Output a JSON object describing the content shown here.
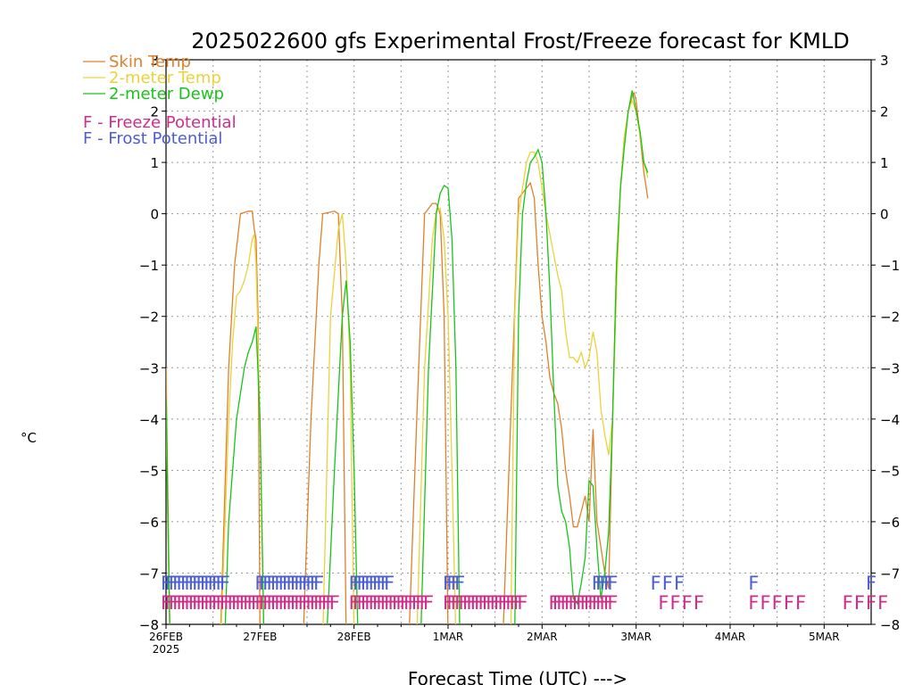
{
  "chart_data": {
    "type": "line",
    "title": "2025022600 gfs Experimental Frost/Freeze forecast for KMLD",
    "ylabel": "°C",
    "xlabel": "Forecast Time (UTC) --->",
    "ylim": [
      -8,
      3
    ],
    "xlim": [
      0,
      180
    ],
    "y_ticks": [
      "-8",
      "-7",
      "-6",
      "-5",
      "-4",
      "-3",
      "-2",
      "-1",
      "0",
      "1",
      "2",
      "3"
    ],
    "x_ticks": [
      {
        "t": 0,
        "label": "26FEB",
        "sub": "2025"
      },
      {
        "t": 24,
        "label": "27FEB",
        "sub": ""
      },
      {
        "t": 48,
        "label": "28FEB",
        "sub": ""
      },
      {
        "t": 72,
        "label": "1MAR",
        "sub": ""
      },
      {
        "t": 96,
        "label": "2MAR",
        "sub": ""
      },
      {
        "t": 120,
        "label": "3MAR",
        "sub": ""
      },
      {
        "t": 144,
        "label": "4MAR",
        "sub": ""
      },
      {
        "t": 168,
        "label": "5MAR",
        "sub": ""
      }
    ],
    "grid": true,
    "legend_position": "top-left",
    "series": [
      {
        "name": "Skin Temp",
        "color": "#e0802a",
        "points": [
          [
            0,
            -3
          ],
          [
            1,
            -8.3
          ],
          [
            8,
            -8.3
          ],
          [
            14,
            -8
          ],
          [
            16,
            -3
          ],
          [
            17.5,
            -1
          ],
          [
            19,
            0
          ],
          [
            21,
            0.05
          ],
          [
            22,
            0.05
          ],
          [
            22.5,
            -0.3
          ],
          [
            23,
            -0.5
          ],
          [
            23.5,
            -2
          ],
          [
            24,
            -8.3
          ],
          [
            35,
            -8.3
          ],
          [
            37,
            -4
          ],
          [
            39,
            -1
          ],
          [
            40,
            0
          ],
          [
            43,
            0.05
          ],
          [
            44,
            0
          ],
          [
            45,
            -2
          ],
          [
            46,
            -8.3
          ],
          [
            62,
            -8.3
          ],
          [
            64,
            -4
          ],
          [
            66,
            0
          ],
          [
            68,
            0.2
          ],
          [
            69,
            0.2
          ],
          [
            70,
            0
          ],
          [
            71,
            -2
          ],
          [
            72,
            -8.3
          ],
          [
            86,
            -8.3
          ],
          [
            88,
            -4
          ],
          [
            90,
            0.3
          ],
          [
            92,
            0.5
          ],
          [
            93,
            0.6
          ],
          [
            94,
            0.3
          ],
          [
            95,
            -1
          ],
          [
            96,
            -2
          ],
          [
            97,
            -2.5
          ],
          [
            98,
            -3.2
          ],
          [
            99,
            -3.5
          ],
          [
            100,
            -3.7
          ],
          [
            101,
            -4.2
          ],
          [
            102,
            -5
          ],
          [
            103,
            -5.5
          ],
          [
            104,
            -6.1
          ],
          [
            105,
            -6.1
          ],
          [
            106,
            -5.8
          ],
          [
            107,
            -5.5
          ],
          [
            108,
            -6
          ],
          [
            109,
            -4.2
          ],
          [
            110,
            -6
          ],
          [
            111,
            -6.5
          ],
          [
            112,
            -7
          ],
          [
            113,
            -7.3
          ],
          [
            114,
            -4
          ],
          [
            115,
            -1
          ],
          [
            116,
            0.5
          ],
          [
            117,
            1.5
          ],
          [
            118,
            2
          ],
          [
            119,
            2.3
          ],
          [
            119.5,
            2.35
          ],
          [
            120,
            2.2
          ],
          [
            121,
            1.5
          ],
          [
            122,
            0.8
          ],
          [
            123,
            0.3
          ]
        ]
      },
      {
        "name": "2-meter Temp",
        "color": "#ead23a",
        "points": [
          [
            0,
            -4
          ],
          [
            1,
            -8.3
          ],
          [
            14,
            -8.3
          ],
          [
            16,
            -4
          ],
          [
            17,
            -2.5
          ],
          [
            18,
            -1.6
          ],
          [
            19,
            -1.5
          ],
          [
            20,
            -1.3
          ],
          [
            21,
            -1
          ],
          [
            22,
            -0.5
          ],
          [
            22.5,
            -0.4
          ],
          [
            23,
            -1
          ],
          [
            24,
            -4
          ],
          [
            25,
            -8.3
          ],
          [
            40,
            -8.3
          ],
          [
            42,
            -2
          ],
          [
            44,
            -0.3
          ],
          [
            45,
            0
          ],
          [
            46,
            -1
          ],
          [
            47,
            -3
          ],
          [
            48,
            -8.3
          ],
          [
            64,
            -8.3
          ],
          [
            66,
            -3
          ],
          [
            68,
            -0.5
          ],
          [
            69,
            0.05
          ],
          [
            70,
            0.1
          ],
          [
            71,
            -0.5
          ],
          [
            72,
            -2
          ],
          [
            73,
            -5
          ],
          [
            74,
            -8.3
          ],
          [
            88,
            -8.3
          ],
          [
            89,
            -2
          ],
          [
            90,
            0
          ],
          [
            91,
            0.5
          ],
          [
            92,
            1
          ],
          [
            93,
            1.2
          ],
          [
            94,
            1.2
          ],
          [
            95,
            1
          ],
          [
            96,
            0.5
          ],
          [
            97,
            0
          ],
          [
            98,
            -0.4
          ],
          [
            99,
            -0.8
          ],
          [
            100,
            -1.2
          ],
          [
            101,
            -1.5
          ],
          [
            102,
            -2.3
          ],
          [
            103,
            -2.8
          ],
          [
            104,
            -2.8
          ],
          [
            105,
            -2.9
          ],
          [
            106,
            -2.7
          ],
          [
            107,
            -3
          ],
          [
            108,
            -2.8
          ],
          [
            109,
            -2.3
          ],
          [
            110,
            -2.7
          ],
          [
            111,
            -3.8
          ],
          [
            112,
            -4.3
          ],
          [
            113,
            -4.7
          ],
          [
            114,
            -4
          ],
          [
            115,
            -1.5
          ],
          [
            116,
            0.5
          ],
          [
            117,
            1.5
          ],
          [
            118,
            2
          ],
          [
            119,
            2.2
          ],
          [
            120,
            2
          ],
          [
            121,
            1.5
          ],
          [
            122,
            1
          ],
          [
            123,
            0.7
          ]
        ]
      },
      {
        "name": "2-meter Dewp",
        "color": "#18c418",
        "points": [
          [
            0,
            -3.6
          ],
          [
            1,
            -8.3
          ],
          [
            15,
            -8.3
          ],
          [
            16,
            -6
          ],
          [
            17,
            -5
          ],
          [
            18,
            -4
          ],
          [
            19,
            -3.5
          ],
          [
            20,
            -3
          ],
          [
            21,
            -2.7
          ],
          [
            22,
            -2.5
          ],
          [
            23,
            -2.2
          ],
          [
            24,
            -4
          ],
          [
            25,
            -8.3
          ],
          [
            41,
            -8.3
          ],
          [
            43,
            -5
          ],
          [
            45,
            -2
          ],
          [
            46,
            -1.3
          ],
          [
            47,
            -2.5
          ],
          [
            48,
            -5
          ],
          [
            49,
            -8.3
          ],
          [
            65,
            -8.3
          ],
          [
            67,
            -3
          ],
          [
            69,
            0
          ],
          [
            70,
            0.4
          ],
          [
            71,
            0.55
          ],
          [
            72,
            0.5
          ],
          [
            73,
            -0.5
          ],
          [
            74,
            -3
          ],
          [
            75,
            -8.3
          ],
          [
            89,
            -8.3
          ],
          [
            90,
            -2
          ],
          [
            91,
            0
          ],
          [
            92,
            0.6
          ],
          [
            93,
            1
          ],
          [
            94,
            1.1
          ],
          [
            95,
            1.25
          ],
          [
            96,
            1
          ],
          [
            97,
            0
          ],
          [
            98,
            -1.5
          ],
          [
            99,
            -3.5
          ],
          [
            100,
            -5.3
          ],
          [
            101,
            -5.8
          ],
          [
            102,
            -6
          ],
          [
            103,
            -6.5
          ],
          [
            104,
            -7.5
          ],
          [
            105,
            -7.6
          ],
          [
            106,
            -7.2
          ],
          [
            107,
            -6.7
          ],
          [
            108,
            -5.2
          ],
          [
            109,
            -5.3
          ],
          [
            110,
            -6.5
          ],
          [
            111,
            -7.5
          ],
          [
            112,
            -7
          ],
          [
            113,
            -6.2
          ],
          [
            114,
            -4
          ],
          [
            115,
            -1
          ],
          [
            116,
            0.5
          ],
          [
            117,
            1.3
          ],
          [
            118,
            2
          ],
          [
            119,
            2.4
          ],
          [
            120,
            2
          ],
          [
            121,
            1.6
          ],
          [
            122,
            1
          ],
          [
            123,
            0.8
          ]
        ]
      }
    ],
    "frost_potential": {
      "label": "F - Frost Potential",
      "letter": "F",
      "color": "#4c5ed2",
      "hours": [
        0,
        1,
        2,
        3,
        4,
        5,
        6,
        7,
        8,
        9,
        10,
        11,
        12,
        13,
        14,
        15,
        24,
        25,
        26,
        27,
        28,
        29,
        30,
        31,
        32,
        33,
        34,
        35,
        36,
        37,
        38,
        39,
        48,
        49,
        50,
        51,
        52,
        53,
        54,
        55,
        56,
        57,
        72,
        73,
        74,
        75,
        110,
        111,
        112,
        113,
        114,
        125,
        128,
        131,
        150,
        180
      ]
    },
    "freeze_potential": {
      "label": "F - Freeze Potential",
      "letter": "F",
      "color": "#cc2e8a",
      "hours": [
        0,
        1,
        2,
        3,
        4,
        5,
        6,
        7,
        8,
        9,
        10,
        11,
        12,
        13,
        14,
        15,
        16,
        17,
        18,
        19,
        20,
        21,
        22,
        23,
        24,
        25,
        26,
        27,
        28,
        29,
        30,
        31,
        32,
        33,
        34,
        35,
        36,
        37,
        38,
        39,
        40,
        41,
        42,
        43,
        48,
        49,
        50,
        51,
        52,
        53,
        54,
        55,
        56,
        57,
        58,
        59,
        60,
        61,
        62,
        63,
        64,
        65,
        66,
        67,
        72,
        73,
        74,
        75,
        76,
        77,
        78,
        79,
        80,
        81,
        82,
        83,
        84,
        85,
        86,
        87,
        88,
        89,
        90,
        91,
        99,
        100,
        101,
        102,
        103,
        104,
        105,
        106,
        107,
        108,
        109,
        110,
        111,
        112,
        113,
        114,
        127,
        130,
        133,
        136,
        150,
        153,
        156,
        159,
        162,
        174,
        177,
        180,
        183
      ]
    }
  }
}
